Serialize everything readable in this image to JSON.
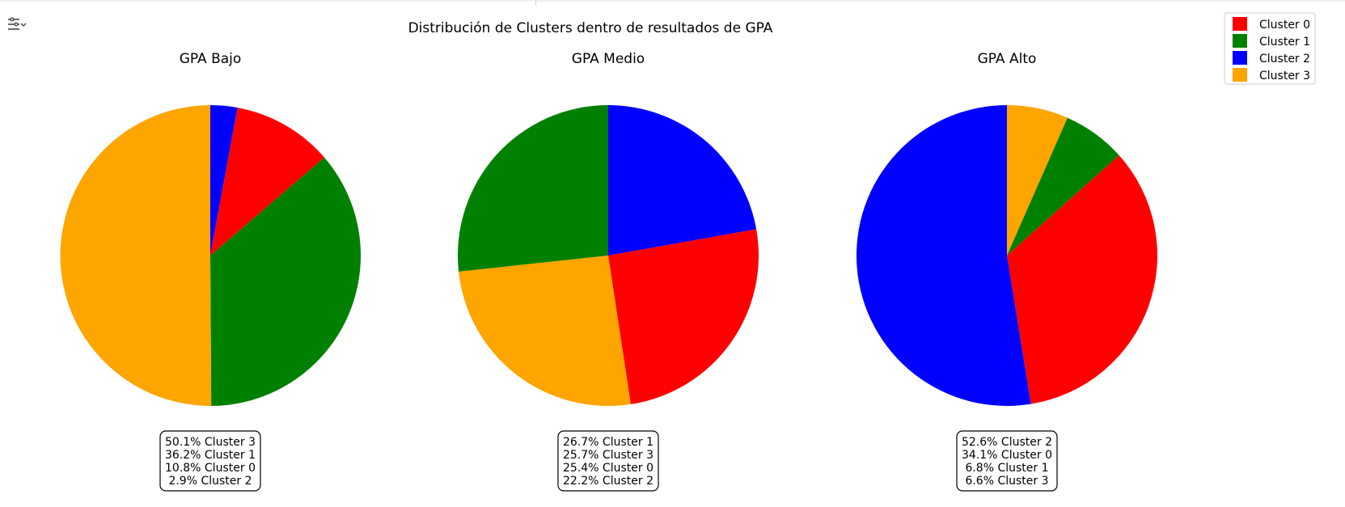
{
  "chart_data": {
    "type": "pie",
    "title": "Distribución de Clusters dentro de resultados de GPA",
    "legend": {
      "placement": "top-right",
      "entries": [
        {
          "label": "Cluster 0",
          "color": "#ff0000"
        },
        {
          "label": "Cluster 1",
          "color": "#008000"
        },
        {
          "label": "Cluster 2",
          "color": "#0000ff"
        },
        {
          "label": "Cluster 3",
          "color": "#ffa500"
        }
      ]
    },
    "charts": [
      {
        "title": "GPA Bajo",
        "slices": [
          {
            "label": "Cluster 2",
            "value": 2.9,
            "color": "#0000ff"
          },
          {
            "label": "Cluster 0",
            "value": 10.8,
            "color": "#ff0000"
          },
          {
            "label": "Cluster 1",
            "value": 36.2,
            "color": "#008000"
          },
          {
            "label": "Cluster 3",
            "value": 50.1,
            "color": "#ffa500"
          }
        ],
        "summary": [
          "50.1% Cluster 3",
          "36.2% Cluster 1",
          "10.8% Cluster 0",
          "2.9% Cluster 2"
        ]
      },
      {
        "title": "GPA Medio",
        "slices": [
          {
            "label": "Cluster 2",
            "value": 22.2,
            "color": "#0000ff"
          },
          {
            "label": "Cluster 0",
            "value": 25.4,
            "color": "#ff0000"
          },
          {
            "label": "Cluster 3",
            "value": 25.7,
            "color": "#ffa500"
          },
          {
            "label": "Cluster 1",
            "value": 26.7,
            "color": "#008000"
          }
        ],
        "summary": [
          "26.7% Cluster 1",
          "25.7% Cluster 3",
          "25.4% Cluster 0",
          "22.2% Cluster 2"
        ]
      },
      {
        "title": "GPA Alto",
        "slices": [
          {
            "label": "Cluster 3",
            "value": 6.6,
            "color": "#ffa500"
          },
          {
            "label": "Cluster 1",
            "value": 6.8,
            "color": "#008000"
          },
          {
            "label": "Cluster 0",
            "value": 34.1,
            "color": "#ff0000"
          },
          {
            "label": "Cluster 2",
            "value": 52.6,
            "color": "#0000ff"
          }
        ],
        "summary": [
          "52.6% Cluster 2",
          "34.1% Cluster 0",
          "6.8% Cluster 1",
          "6.6% Cluster 3"
        ]
      }
    ]
  },
  "toolbar": {
    "icon": "filter-settings-icon"
  }
}
